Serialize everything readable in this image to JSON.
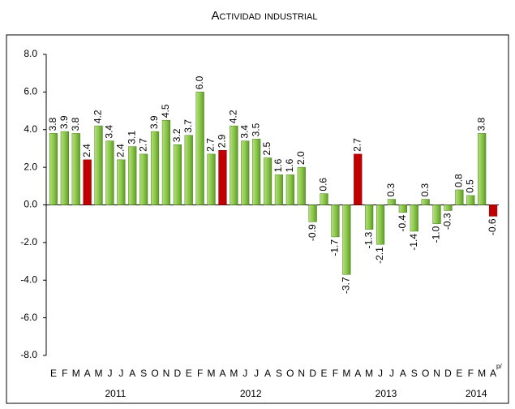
{
  "chart_data": {
    "type": "bar",
    "title": "Actividad industrial",
    "categories": [
      "E",
      "F",
      "M",
      "A",
      "M",
      "J",
      "J",
      "A",
      "S",
      "O",
      "N",
      "D",
      "E",
      "F",
      "M",
      "A",
      "M",
      "J",
      "J",
      "A",
      "S",
      "O",
      "N",
      "D",
      "E",
      "F",
      "M",
      "A",
      "M",
      "J",
      "J",
      "A",
      "S",
      "O",
      "N",
      "D",
      "E",
      "F",
      "M",
      "A"
    ],
    "last_category_note": "p/",
    "x_groups": [
      {
        "label": "2011",
        "count": 12
      },
      {
        "label": "2012",
        "count": 12
      },
      {
        "label": "2013",
        "count": 12
      },
      {
        "label": "2014",
        "count": 4
      }
    ],
    "values": [
      3.8,
      3.9,
      3.8,
      2.4,
      4.2,
      3.4,
      2.4,
      3.1,
      2.7,
      3.9,
      4.5,
      3.2,
      3.7,
      6.0,
      2.7,
      2.9,
      4.2,
      3.4,
      3.5,
      2.5,
      1.6,
      1.6,
      2.0,
      -0.9,
      0.6,
      -1.7,
      -3.7,
      2.7,
      -1.3,
      -2.1,
      0.3,
      -0.4,
      -1.4,
      0.3,
      -1.0,
      -0.3,
      0.8,
      0.5,
      3.8,
      -0.6
    ],
    "value_labels": [
      "3.8",
      "3.9",
      "3.8",
      "2.4",
      "4.2",
      "3.4",
      "2.4",
      "3.1",
      "2.7",
      "3.9",
      "4.5",
      "3.2",
      "3.7",
      "6.0",
      "2.7",
      "2.9",
      "4.2",
      "3.4",
      "3.5",
      "2.5",
      "1.6",
      "1.6",
      "2.0",
      "-0.9",
      "0.6",
      "-1.7",
      "-3.7",
      "2.7",
      "-1.3",
      "-2.1",
      "0.3",
      "-0.4",
      "-1.4",
      "0.3",
      "-1.0",
      "-0.3",
      "0.8",
      "0.5",
      "3.8",
      "-0.6"
    ],
    "color": "#8cc84b",
    "highlight_color": "#c00000",
    "highlighted": [
      3,
      15,
      27,
      39
    ],
    "ylim": [
      -8,
      8
    ],
    "yticks": [
      {
        "value": -8,
        "label": "-8.0"
      },
      {
        "value": -6,
        "label": "-6.0"
      },
      {
        "value": -4,
        "label": "-4.0"
      },
      {
        "value": -2,
        "label": "-2.0"
      },
      {
        "value": 0,
        "label": "0.0"
      },
      {
        "value": 2,
        "label": "2.0"
      },
      {
        "value": 4,
        "label": "4.0"
      },
      {
        "value": 6,
        "label": "6.0"
      },
      {
        "value": 8,
        "label": "8.0"
      }
    ]
  }
}
